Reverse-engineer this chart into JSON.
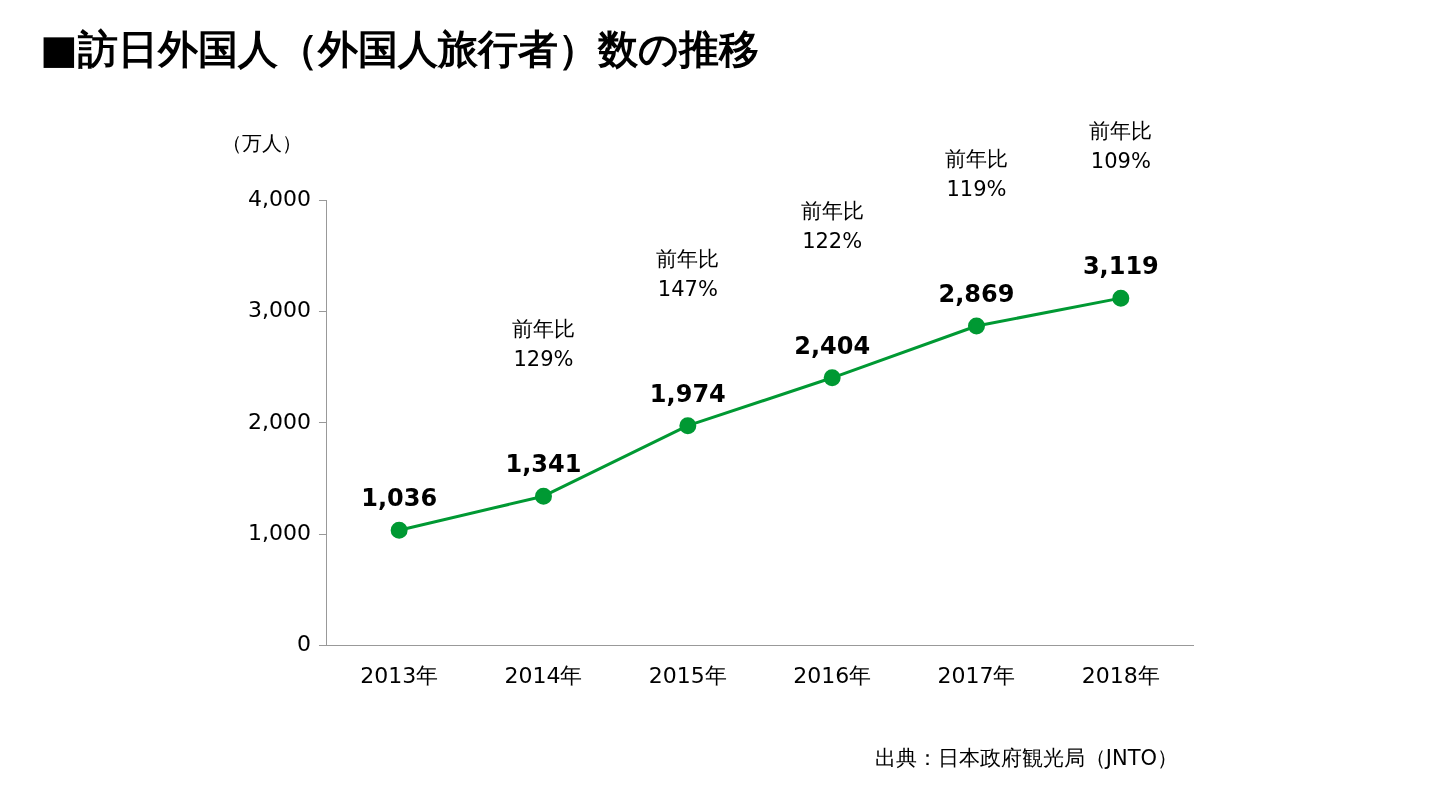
{
  "chart_data": {
    "type": "line",
    "title": "■訪日外国人（外国人旅行者）数の推移",
    "ylabel": "（万人）",
    "categories": [
      "2013年",
      "2014年",
      "2015年",
      "2016年",
      "2017年",
      "2018年"
    ],
    "series": [
      {
        "color": "#009933",
        "values": [
          1036,
          1341,
          1974,
          2404,
          2869,
          3119
        ]
      }
    ],
    "value_labels": [
      "1,036",
      "1,341",
      "1,974",
      "2,404",
      "2,869",
      "3,119"
    ],
    "ylim": [
      0,
      4000
    ],
    "yticks": [
      {
        "value": 0,
        "label": "0"
      },
      {
        "value": 1000,
        "label": "1,000"
      },
      {
        "value": 2000,
        "label": "2,000"
      },
      {
        "value": 3000,
        "label": "3,000"
      },
      {
        "value": 4000,
        "label": "4,000"
      }
    ],
    "grid": false,
    "legend": false,
    "marker": "circle",
    "line_style": "solid",
    "annotations": [
      "前年比\n129%",
      "前年比\n147%",
      "前年比\n122%",
      "前年比\n119%",
      "前年比\n109%",
      "出典：日本政府観光局（JNTO）"
    ]
  }
}
